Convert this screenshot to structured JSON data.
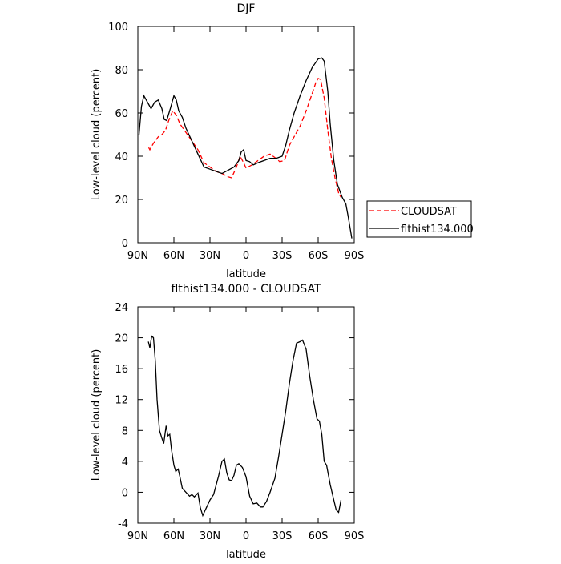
{
  "chart_data": [
    {
      "type": "line",
      "title": "DJF",
      "xlabel": "latitude",
      "ylabel": "Low-level cloud (percent)",
      "xlim": [
        90,
        -90
      ],
      "xticks": [
        {
          "value": 90,
          "label": "90N"
        },
        {
          "value": 60,
          "label": "60N"
        },
        {
          "value": 30,
          "label": "30N"
        },
        0,
        {
          "value": -30,
          "label": "30S"
        },
        {
          "value": -60,
          "label": "60S"
        },
        {
          "value": -90,
          "label": "90S"
        }
      ],
      "ylim": [
        0,
        100
      ],
      "yticks": [
        0,
        20,
        40,
        60,
        80,
        100
      ],
      "legend": "right",
      "series": [
        {
          "name": "CLOUDSAT",
          "color": "#ff0000",
          "dash": true,
          "x": [
            81,
            80,
            77,
            73,
            70,
            67,
            64,
            61,
            58,
            55,
            50,
            45,
            40,
            35,
            30,
            25,
            20,
            15,
            12,
            8,
            5,
            2,
            0,
            -5,
            -10,
            -15,
            -20,
            -25,
            -28,
            -32,
            -36,
            -40,
            -45,
            -50,
            -55,
            -58,
            -60,
            -62,
            -65,
            -68,
            -71,
            -74,
            -77,
            -79
          ],
          "values": [
            44,
            43,
            46,
            49,
            50,
            52,
            57,
            61,
            59,
            55,
            51,
            47,
            43,
            37,
            35,
            33,
            32,
            30.5,
            30,
            35,
            40,
            37,
            34.5,
            36,
            38,
            40,
            41,
            39,
            37.5,
            38,
            45,
            49,
            54,
            61,
            69,
            74,
            76,
            75.5,
            67,
            52,
            39,
            30,
            23,
            21
          ]
        },
        {
          "name": "flthist134.000",
          "color": "#000000",
          "dash": false,
          "x": [
            89,
            87,
            85,
            82,
            79,
            76,
            73,
            70,
            68,
            66,
            63,
            60,
            58,
            56,
            53,
            50,
            45,
            40,
            35,
            30,
            25,
            20,
            15,
            10,
            6,
            4,
            2,
            0,
            -3,
            -6,
            -10,
            -15,
            -20,
            -25,
            -30,
            -33,
            -36,
            -40,
            -45,
            -50,
            -55,
            -60,
            -63,
            -65,
            -68,
            -70,
            -73,
            -76,
            -80,
            -83,
            -85,
            -88
          ],
          "values": [
            50,
            63,
            68,
            65,
            62,
            65,
            66,
            62,
            57,
            56.5,
            62,
            68,
            66,
            61,
            58,
            53,
            47,
            41,
            35,
            34,
            33,
            32,
            33.5,
            35,
            38,
            42,
            43,
            38,
            37.5,
            36,
            37,
            38,
            39,
            39,
            40,
            45,
            52,
            60,
            68,
            75,
            81,
            85,
            85.5,
            84,
            70,
            55,
            38,
            27,
            21,
            18,
            12,
            2
          ]
        }
      ]
    },
    {
      "type": "line",
      "title": "flthist134.000 - CLOUDSAT",
      "xlabel": "latitude",
      "ylabel": "Low-level cloud (percent)",
      "xlim": [
        90,
        -90
      ],
      "xticks": [
        {
          "value": 90,
          "label": "90N"
        },
        {
          "value": 60,
          "label": "60N"
        },
        {
          "value": 30,
          "label": "30N"
        },
        0,
        {
          "value": -30,
          "label": "30S"
        },
        {
          "value": -60,
          "label": "60S"
        },
        {
          "value": -90,
          "label": "90S"
        }
      ],
      "ylim": [
        -4,
        24
      ],
      "yticks": [
        -4,
        0,
        4,
        8,
        12,
        16,
        20,
        24
      ],
      "series": [
        {
          "color": "#000000",
          "dash": false,
          "x": [
            81.3,
            80,
            78.5,
            77,
            75.5,
            74,
            72,
            70,
            68.5,
            66.5,
            65,
            63.5,
            62,
            60,
            58.5,
            56.5,
            55,
            53,
            50,
            47,
            45,
            43,
            40,
            38,
            36,
            33,
            30,
            27,
            23,
            20,
            18,
            16,
            14,
            12,
            10,
            8,
            6,
            3,
            0,
            -3,
            -6,
            -9,
            -12,
            -14,
            -17,
            -20,
            -24,
            -27,
            -30,
            -33,
            -36,
            -39,
            -42,
            -45,
            -47,
            -50,
            -53,
            -56,
            -59,
            -61,
            -63,
            -65,
            -67,
            -70,
            -73,
            -75,
            -77,
            -79
          ],
          "values": [
            19.5,
            18.7,
            20.2,
            20,
            17,
            12,
            8,
            7,
            6.3,
            8.6,
            7.3,
            7.5,
            5.5,
            3.5,
            2.7,
            3,
            2,
            0.5,
            0,
            -0.5,
            -0.3,
            -0.6,
            -0.1,
            -2,
            -3,
            -2,
            -1,
            -0.3,
            2,
            4,
            4.3,
            2.5,
            1.6,
            1.5,
            2.2,
            3.5,
            3.7,
            3.2,
            2,
            -0.5,
            -1.5,
            -1.4,
            -1.9,
            -1.9,
            -1.2,
            0,
            1.8,
            4.5,
            7.5,
            10.5,
            14,
            17,
            19.3,
            19.5,
            19.7,
            18.5,
            15,
            12,
            9.5,
            9.2,
            7.5,
            4,
            3.5,
            1,
            -1,
            -2.3,
            -2.6,
            -1
          ]
        }
      ]
    }
  ]
}
